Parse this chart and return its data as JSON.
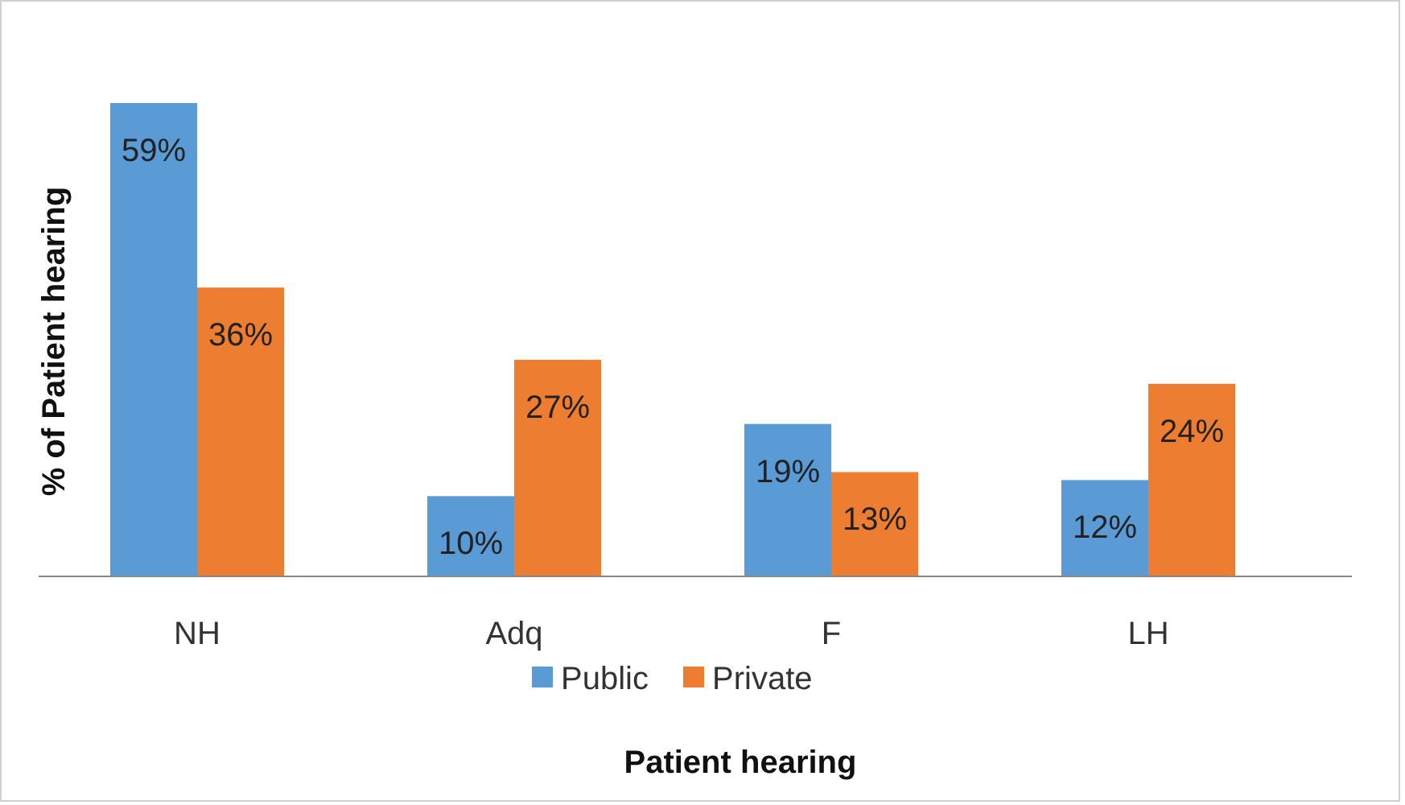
{
  "chart_data": {
    "type": "bar",
    "xlabel": "Patient hearing",
    "ylabel": "% of Patient hearing",
    "categories": [
      "NH",
      "Adq",
      "F",
      "LH"
    ],
    "series": [
      {
        "name": "Public",
        "color": "#5b9bd5",
        "values": [
          59,
          10,
          19,
          12
        ],
        "value_labels": [
          "59%",
          "10%",
          "19%",
          "12%"
        ]
      },
      {
        "name": "Private",
        "color": "#ed7d31",
        "values": [
          36,
          27,
          13,
          24
        ],
        "value_labels": [
          "36%",
          "27%",
          "13%",
          "24%"
        ]
      }
    ],
    "legend": "bottom"
  }
}
